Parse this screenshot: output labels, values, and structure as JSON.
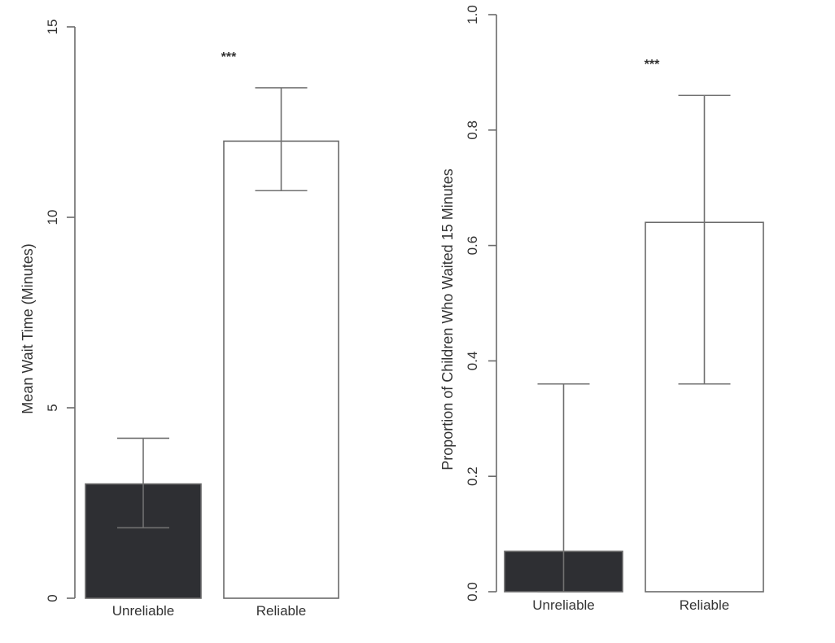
{
  "chart_data": [
    {
      "type": "bar",
      "title": "",
      "xlabel": "",
      "ylabel": "Mean Wait Time (Minutes)",
      "categories": [
        "Unreliable",
        "Reliable"
      ],
      "values": [
        3.0,
        12.0
      ],
      "error_low": [
        1.85,
        10.7
      ],
      "error_high": [
        4.2,
        13.4
      ],
      "bar_colors": [
        "#2e2f33",
        "#ffffff"
      ],
      "ylim": [
        0,
        15
      ],
      "yticks": [
        "0",
        "5",
        "10",
        "15"
      ],
      "grid": false,
      "annotation": "***"
    },
    {
      "type": "bar",
      "title": "",
      "xlabel": "",
      "ylabel": "Proportion of Children Who Waited 15 Minutes",
      "categories": [
        "Unreliable",
        "Reliable"
      ],
      "values": [
        0.07,
        0.64
      ],
      "error_low": [
        0.0,
        0.36
      ],
      "error_high": [
        0.36,
        0.86
      ],
      "bar_colors": [
        "#2e2f33",
        "#ffffff"
      ],
      "ylim": [
        0,
        1.0
      ],
      "yticks": [
        "0.0",
        "0.2",
        "0.4",
        "0.6",
        "0.8",
        "1.0"
      ],
      "grid": false,
      "annotation": "***"
    }
  ]
}
